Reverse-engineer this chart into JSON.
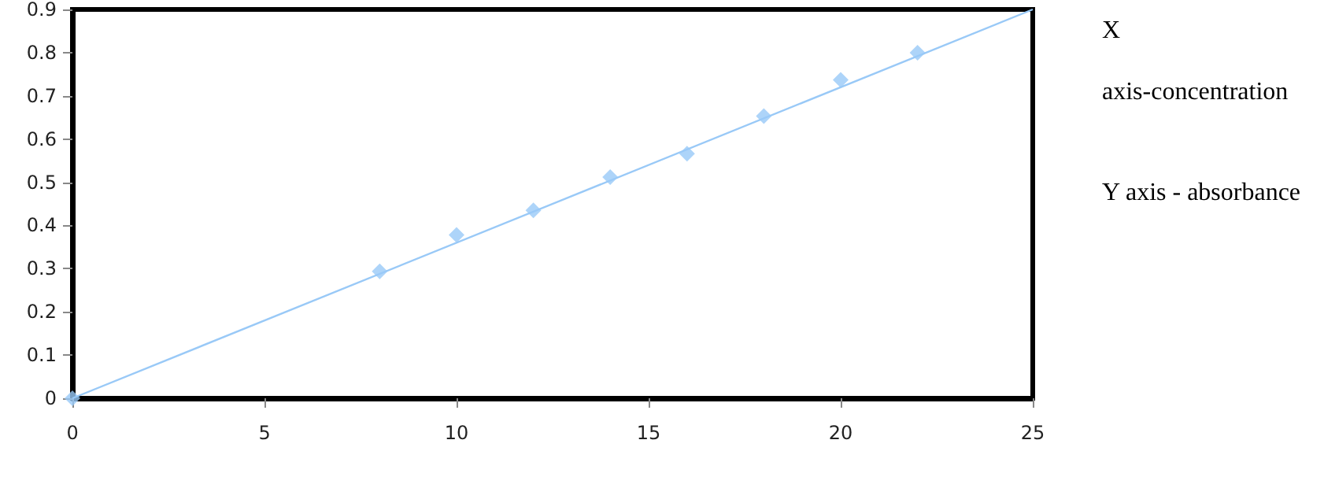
{
  "chart_data": {
    "type": "scatter",
    "series": [
      {
        "color": "#99c9f7",
        "x": [
          0,
          8,
          10,
          12,
          14,
          16,
          18,
          20,
          22
        ],
        "values": [
          0,
          0.294,
          0.378,
          0.435,
          0.512,
          0.566,
          0.653,
          0.737,
          0.8
        ]
      },
      {
        "type": "line",
        "color": "#99c9f7",
        "x": [
          0,
          25
        ],
        "values": [
          0,
          0.9
        ],
        "marker": "none"
      }
    ],
    "marker": "diamond",
    "xlim": [
      0,
      25
    ],
    "xticks": [
      0,
      5,
      10,
      15,
      20,
      25
    ],
    "ylim": [
      0,
      0.9
    ],
    "yticks": [
      0,
      0.1,
      0.2,
      0.3,
      0.4,
      0.5,
      0.6,
      0.7,
      0.8,
      0.9
    ],
    "grid": false,
    "annotations": [
      "X axis-concentration",
      "Y axis - absorbance"
    ]
  }
}
